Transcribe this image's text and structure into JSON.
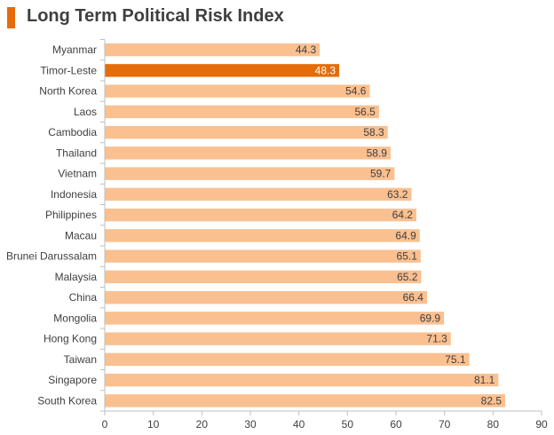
{
  "colors": {
    "accent": "#E46C0A",
    "bar": "#FAC090",
    "highlight": "#E46C0A",
    "highlight_label": "#ffffff",
    "label": "#404040",
    "axis": "#BFBFBF"
  },
  "chart_data": {
    "type": "bar",
    "orientation": "horizontal",
    "title": "Long Term Political Risk Index",
    "xlabel": "",
    "ylabel": "",
    "xlim": [
      0,
      90
    ],
    "xticks": [
      0,
      10,
      20,
      30,
      40,
      50,
      60,
      70,
      80,
      90
    ],
    "grid": false,
    "legend": "none",
    "highlighted_category": "Timor-Leste",
    "categories": [
      "Myanmar",
      "Timor-Leste",
      "North Korea",
      "Laos",
      "Cambodia",
      "Thailand",
      "Vietnam",
      "Indonesia",
      "Philippines",
      "Macau",
      "Brunei Darussalam",
      "Malaysia",
      "China",
      "Mongolia",
      "Hong Kong",
      "Taiwan",
      "Singapore",
      "South Korea"
    ],
    "values": [
      44.3,
      48.3,
      54.6,
      56.5,
      58.3,
      58.9,
      59.7,
      63.2,
      64.2,
      64.9,
      65.1,
      65.2,
      66.4,
      69.9,
      71.3,
      75.1,
      81.1,
      82.5
    ],
    "value_labels": [
      "44.3",
      "48.3",
      "54.6",
      "56.5",
      "58.3",
      "58.9",
      "59.7",
      "63.2",
      "64.2",
      "64.9",
      "65.1",
      "65.2",
      "66.4",
      "69.9",
      "71.3",
      "75.1",
      "81.1",
      "82.5"
    ]
  }
}
